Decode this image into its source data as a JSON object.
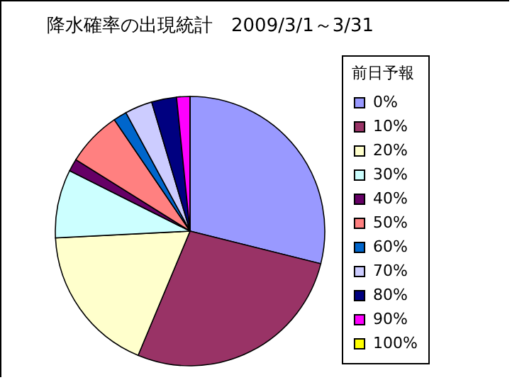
{
  "chart_data": {
    "type": "pie",
    "title": "降水確率の出現統計　2009/3/1～3/31",
    "legend_title": "前日予報",
    "legend": "right",
    "categories": [
      "0%",
      "10%",
      "20%",
      "30%",
      "40%",
      "50%",
      "60%",
      "70%",
      "80%",
      "90%",
      "100%"
    ],
    "values": [
      28.9,
      27.4,
      17.9,
      8.2,
      1.5,
      6.6,
      1.6,
      3.3,
      3.0,
      1.6,
      0
    ],
    "colors": [
      "#9999ff",
      "#993366",
      "#ffffcc",
      "#ccffff",
      "#660066",
      "#ff8080",
      "#0066cc",
      "#ccccff",
      "#000080",
      "#ff00ff",
      "#ffff00"
    ]
  }
}
